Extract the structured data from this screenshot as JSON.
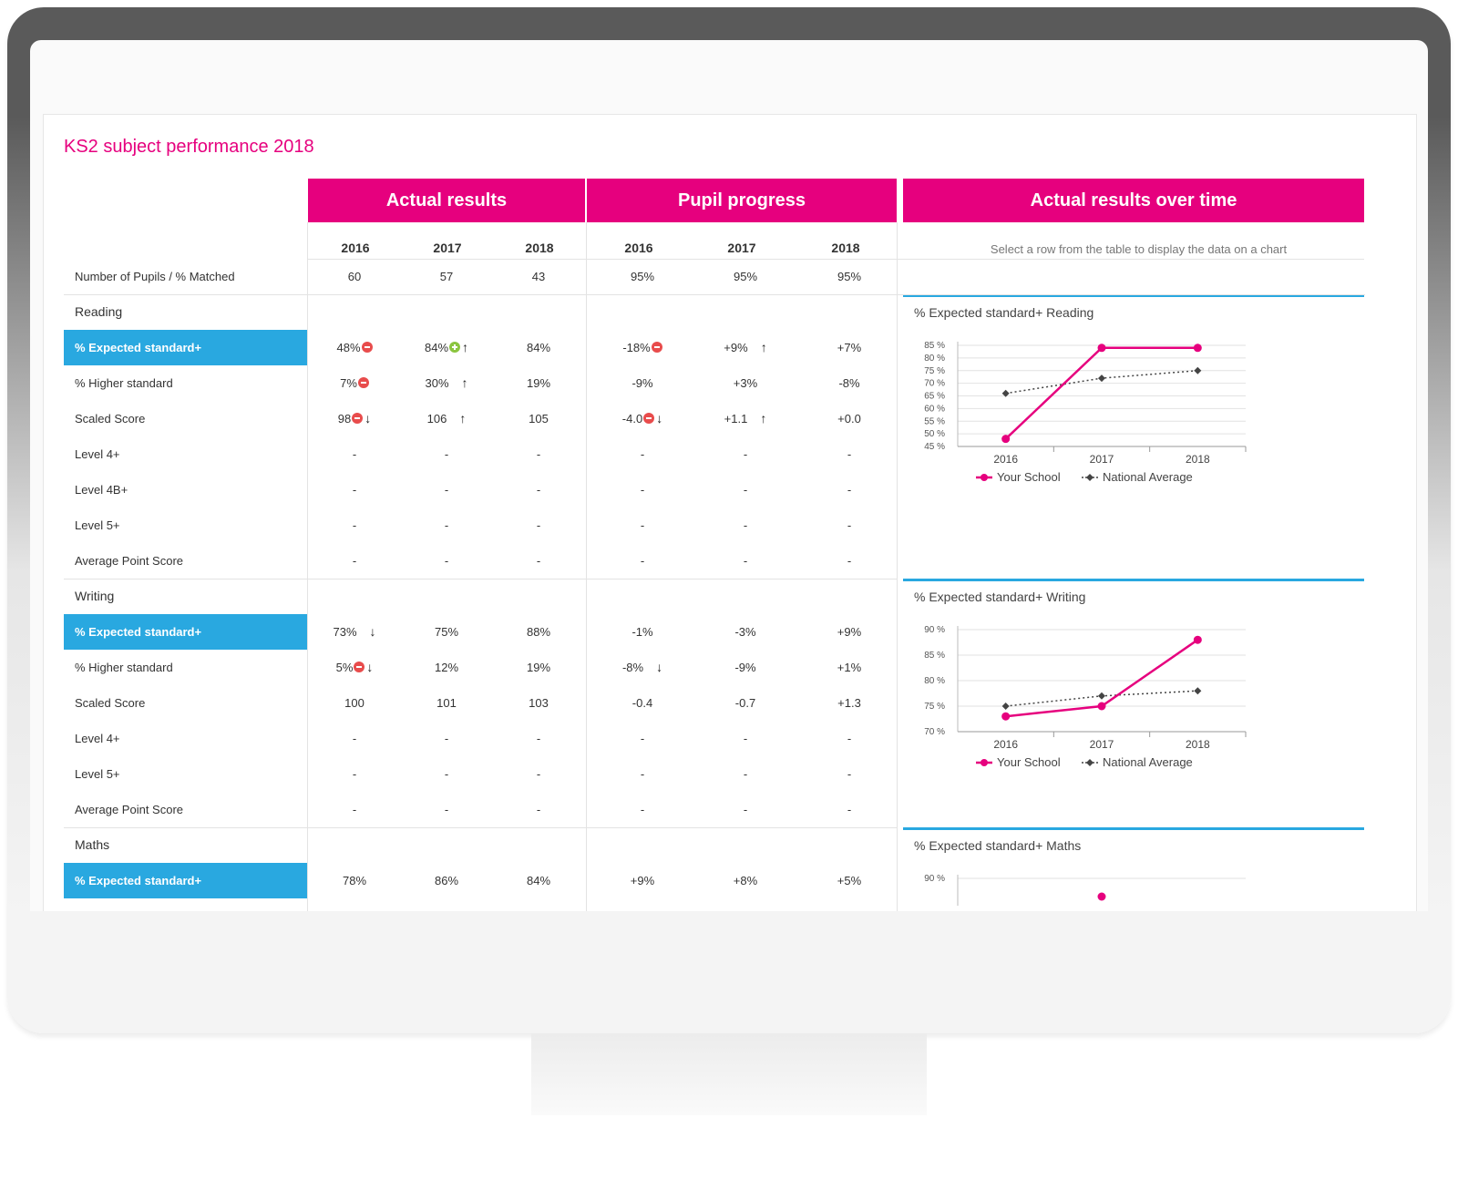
{
  "title": "KS2 subject performance 2018",
  "headers": {
    "actual": "Actual results",
    "progress": "Pupil progress",
    "over_time": "Actual results over time"
  },
  "years": [
    "2016",
    "2017",
    "2018"
  ],
  "hint": "Select a row from the table to display the data on a chart",
  "pupils_row": {
    "label": "Number of Pupils / % Matched",
    "actual": [
      "60",
      "57",
      "43"
    ],
    "progress": [
      "95%",
      "95%",
      "95%"
    ]
  },
  "sections": [
    {
      "name": "Reading",
      "rows": [
        {
          "label": "% Expected standard+",
          "selected": true,
          "actual": [
            {
              "v": "48%",
              "icon": "red"
            },
            {
              "v": "84%",
              "icon": "green",
              "arrow": "up"
            },
            {
              "v": "84%"
            }
          ],
          "progress": [
            {
              "v": "-18%",
              "icon": "red"
            },
            {
              "v": "+9%",
              "arrow": "up"
            },
            {
              "v": "+7%"
            }
          ]
        },
        {
          "label": "% Higher standard",
          "actual": [
            {
              "v": "7%",
              "icon": "red"
            },
            {
              "v": "30%",
              "arrow": "up"
            },
            {
              "v": "19%"
            }
          ],
          "progress": [
            {
              "v": "-9%"
            },
            {
              "v": "+3%"
            },
            {
              "v": "-8%"
            }
          ]
        },
        {
          "label": "Scaled Score",
          "actual": [
            {
              "v": "98",
              "icon": "red",
              "arrow": "down"
            },
            {
              "v": "106",
              "arrow": "up"
            },
            {
              "v": "105"
            }
          ],
          "progress": [
            {
              "v": "-4.0",
              "icon": "red",
              "arrow": "down"
            },
            {
              "v": "+1.1",
              "arrow": "up"
            },
            {
              "v": "+0.0"
            }
          ]
        },
        {
          "label": "Level 4+",
          "actual": [
            {
              "v": "-"
            },
            {
              "v": "-"
            },
            {
              "v": "-"
            }
          ],
          "progress": [
            {
              "v": "-"
            },
            {
              "v": "-"
            },
            {
              "v": "-"
            }
          ]
        },
        {
          "label": "Level 4B+",
          "actual": [
            {
              "v": "-"
            },
            {
              "v": "-"
            },
            {
              "v": "-"
            }
          ],
          "progress": [
            {
              "v": "-"
            },
            {
              "v": "-"
            },
            {
              "v": "-"
            }
          ]
        },
        {
          "label": "Level 5+",
          "actual": [
            {
              "v": "-"
            },
            {
              "v": "-"
            },
            {
              "v": "-"
            }
          ],
          "progress": [
            {
              "v": "-"
            },
            {
              "v": "-"
            },
            {
              "v": "-"
            }
          ]
        },
        {
          "label": "Average Point Score",
          "actual": [
            {
              "v": "-"
            },
            {
              "v": "-"
            },
            {
              "v": "-"
            }
          ],
          "progress": [
            {
              "v": "-"
            },
            {
              "v": "-"
            },
            {
              "v": "-"
            }
          ]
        }
      ]
    },
    {
      "name": "Writing",
      "rows": [
        {
          "label": "% Expected standard+",
          "selected": true,
          "actual": [
            {
              "v": "73%",
              "arrow": "down"
            },
            {
              "v": "75%"
            },
            {
              "v": "88%"
            }
          ],
          "progress": [
            {
              "v": "-1%"
            },
            {
              "v": "-3%"
            },
            {
              "v": "+9%"
            }
          ]
        },
        {
          "label": "% Higher standard",
          "actual": [
            {
              "v": "5%",
              "icon": "red",
              "arrow": "down"
            },
            {
              "v": "12%"
            },
            {
              "v": "19%"
            }
          ],
          "progress": [
            {
              "v": "-8%",
              "arrow": "down"
            },
            {
              "v": "-9%"
            },
            {
              "v": "+1%"
            }
          ]
        },
        {
          "label": "Scaled Score",
          "actual": [
            {
              "v": "100"
            },
            {
              "v": "101"
            },
            {
              "v": "103"
            }
          ],
          "progress": [
            {
              "v": "-0.4"
            },
            {
              "v": "-0.7"
            },
            {
              "v": "+1.3"
            }
          ]
        },
        {
          "label": "Level 4+",
          "actual": [
            {
              "v": "-"
            },
            {
              "v": "-"
            },
            {
              "v": "-"
            }
          ],
          "progress": [
            {
              "v": "-"
            },
            {
              "v": "-"
            },
            {
              "v": "-"
            }
          ]
        },
        {
          "label": "Level 5+",
          "actual": [
            {
              "v": "-"
            },
            {
              "v": "-"
            },
            {
              "v": "-"
            }
          ],
          "progress": [
            {
              "v": "-"
            },
            {
              "v": "-"
            },
            {
              "v": "-"
            }
          ]
        },
        {
          "label": "Average Point Score",
          "actual": [
            {
              "v": "-"
            },
            {
              "v": "-"
            },
            {
              "v": "-"
            }
          ],
          "progress": [
            {
              "v": "-"
            },
            {
              "v": "-"
            },
            {
              "v": "-"
            }
          ]
        }
      ]
    },
    {
      "name": "Maths",
      "rows": [
        {
          "label": "% Expected standard+",
          "selected": true,
          "actual": [
            {
              "v": "78%"
            },
            {
              "v": "86%"
            },
            {
              "v": "84%"
            }
          ],
          "progress": [
            {
              "v": "+9%"
            },
            {
              "v": "+8%"
            },
            {
              "v": "+5%"
            }
          ]
        }
      ]
    }
  ],
  "legend": {
    "school": "Your School",
    "national": "National Average"
  },
  "colors": {
    "accent": "#e6007e",
    "selected": "#29a8e0",
    "national": "#555555"
  },
  "chart_data": [
    {
      "type": "line",
      "title": "% Expected standard+ Reading",
      "x": [
        "2016",
        "2017",
        "2018"
      ],
      "ylim": [
        45,
        85
      ],
      "yticks": [
        45,
        50,
        55,
        60,
        65,
        70,
        75,
        80,
        85
      ],
      "tick_suffix": " %",
      "series": [
        {
          "name": "Your School",
          "values": [
            48,
            84,
            84
          ]
        },
        {
          "name": "National Average",
          "values": [
            66,
            72,
            75
          ]
        }
      ]
    },
    {
      "type": "line",
      "title": "% Expected standard+ Writing",
      "x": [
        "2016",
        "2017",
        "2018"
      ],
      "ylim": [
        70,
        90
      ],
      "yticks": [
        70,
        75,
        80,
        85,
        90
      ],
      "tick_suffix": " %",
      "series": [
        {
          "name": "Your School",
          "values": [
            73,
            75,
            88
          ]
        },
        {
          "name": "National Average",
          "values": [
            75,
            77,
            78
          ]
        }
      ]
    },
    {
      "type": "line",
      "title": "% Expected standard+ Maths",
      "yticks": [
        90
      ],
      "tick_suffix": " %"
    }
  ]
}
